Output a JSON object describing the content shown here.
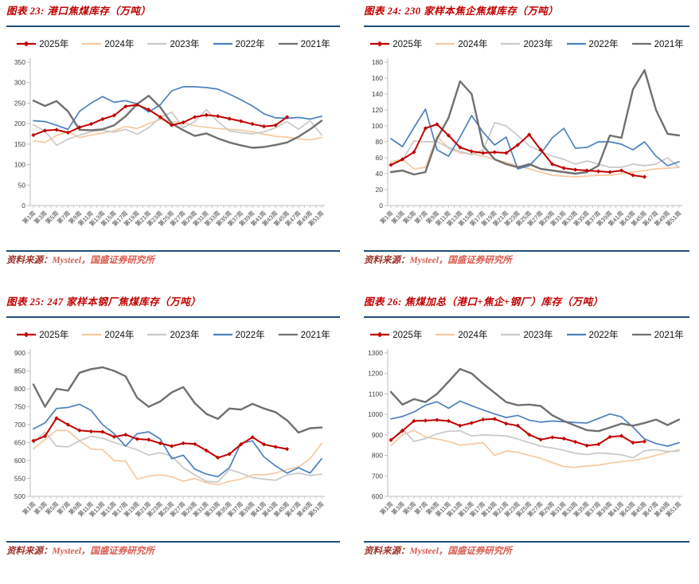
{
  "source": {
    "prefix": "资料来源：",
    "rest": "Mysteel，国盛证券研究所"
  },
  "separator_color": "#1f4e79",
  "title_color": "#c00000",
  "chart_data": [
    {
      "id": "chart-23",
      "type": "line",
      "title": "图表 23: 港口焦煤库存（万吨）",
      "source_prefix": "资料来源：",
      "source_rest": "Mysteel，国盛证券研究所",
      "y_axis": {
        "min": 0,
        "max": 350,
        "step": 50
      },
      "legend_position": "top",
      "grid": false,
      "categories": [
        "第1周",
        "第3周",
        "第5周",
        "第7周",
        "第9周",
        "第11周",
        "第13周",
        "第15周",
        "第17周",
        "第19周",
        "第21周",
        "第23周",
        "第25周",
        "第27周",
        "第29周",
        "第31周",
        "第33周",
        "第35周",
        "第37周",
        "第39周",
        "第41周",
        "第43周",
        "第45周",
        "第47周",
        "第49周",
        "第51周"
      ],
      "series": [
        {
          "name": "2025年",
          "color": "#c00000",
          "marker": "diamond",
          "values": [
            172,
            183,
            185,
            178,
            191,
            199,
            211,
            220,
            242,
            246,
            234,
            216,
            196,
            203,
            216,
            221,
            218,
            212,
            206,
            199,
            193,
            196,
            216,
            null,
            null,
            null
          ]
        },
        {
          "name": "2024年",
          "color": "#f6c9a0",
          "values": [
            158,
            154,
            171,
            181,
            166,
            172,
            177,
            183,
            193,
            188,
            200,
            210,
            205,
            202,
            195,
            191,
            188,
            186,
            184,
            180,
            174,
            169,
            167,
            163,
            160,
            166
          ]
        },
        {
          "name": "2023年",
          "color": "#c9c9c9",
          "values": [
            197,
            182,
            147,
            162,
            172,
            180,
            184,
            179,
            186,
            174,
            190,
            215,
            228,
            190,
            205,
            234,
            205,
            182,
            178,
            175,
            180,
            190,
            205,
            186,
            207,
            172
          ]
        },
        {
          "name": "2022年",
          "color": "#4e81bd",
          "values": [
            207,
            205,
            196,
            186,
            230,
            250,
            266,
            252,
            256,
            248,
            228,
            246,
            280,
            290,
            290,
            288,
            284,
            272,
            258,
            243,
            224,
            214,
            213,
            215,
            211,
            218
          ]
        },
        {
          "name": "2021年",
          "color": "#707070",
          "values": [
            256,
            243,
            255,
            230,
            185,
            184,
            186,
            196,
            218,
            248,
            268,
            240,
            200,
            184,
            170,
            176,
            164,
            154,
            147,
            141,
            143,
            148,
            154,
            168,
            186,
            207
          ]
        }
      ]
    },
    {
      "id": "chart-24",
      "type": "line",
      "title": "图表 24: 230 家样本焦企焦煤库存（万吨）",
      "source_prefix": "资料来源：",
      "source_rest": "Mysteel，国盛证券研究所",
      "y_axis": {
        "min": 0,
        "max": 180,
        "step": 20
      },
      "legend_position": "top",
      "grid": false,
      "categories": [
        "第1周",
        "第3周",
        "第5周",
        "第7周",
        "第9周",
        "第11周",
        "第13周",
        "第15周",
        "第17周",
        "第19周",
        "第21周",
        "第23周",
        "第25周",
        "第27周",
        "第29周",
        "第31周",
        "第33周",
        "第35周",
        "第37周",
        "第39周",
        "第41周",
        "第43周",
        "第45周",
        "第47周",
        "第49周",
        "第51周"
      ],
      "series": [
        {
          "name": "2025年",
          "color": "#c00000",
          "marker": "diamond",
          "values": [
            51,
            58,
            67,
            97,
            102,
            88,
            73,
            68,
            66,
            67,
            66,
            76,
            89,
            70,
            52,
            47,
            45,
            44,
            43,
            42,
            44,
            38,
            36,
            null,
            null,
            null
          ]
        },
        {
          "name": "2024年",
          "color": "#f6c9a0",
          "values": [
            55,
            58,
            46,
            48,
            87,
            72,
            66,
            65,
            62,
            58,
            54,
            50,
            46,
            42,
            38,
            37,
            36,
            37,
            38,
            38,
            40,
            42,
            44,
            46,
            47,
            48
          ]
        },
        {
          "name": "2023年",
          "color": "#c9c9c9",
          "values": [
            50,
            57,
            81,
            80,
            80,
            73,
            68,
            64,
            70,
            104,
            100,
            88,
            75,
            68,
            62,
            58,
            52,
            56,
            52,
            48,
            48,
            52,
            50,
            52,
            60,
            48
          ]
        },
        {
          "name": "2022年",
          "color": "#4e81bd",
          "values": [
            84,
            74,
            98,
            121,
            70,
            62,
            86,
            113,
            92,
            76,
            86,
            46,
            50,
            65,
            85,
            97,
            72,
            73,
            80,
            80,
            77,
            70,
            80,
            62,
            50,
            55
          ]
        },
        {
          "name": "2021年",
          "color": "#707070",
          "values": [
            42,
            44,
            39,
            42,
            84,
            110,
            156,
            140,
            75,
            58,
            52,
            48,
            52,
            46,
            44,
            42,
            40,
            42,
            50,
            88,
            85,
            146,
            170,
            120,
            90,
            88
          ]
        }
      ]
    },
    {
      "id": "chart-25",
      "type": "line",
      "title": "图表 25: 247 家样本钢厂焦煤库存（万吨）",
      "source_prefix": "资料来源：",
      "source_rest": "Mysteel，国盛证券研究所",
      "y_axis": {
        "min": 500,
        "max": 900,
        "step": 50
      },
      "legend_position": "top",
      "grid": false,
      "categories": [
        "第1周",
        "第3周",
        "第5周",
        "第7周",
        "第9周",
        "第11周",
        "第13周",
        "第15周",
        "第17周",
        "第19周",
        "第21周",
        "第23周",
        "第25周",
        "第27周",
        "第29周",
        "第31周",
        "第33周",
        "第35周",
        "第37周",
        "第39周",
        "第41周",
        "第43周",
        "第45周",
        "第47周",
        "第49周",
        "第51周"
      ],
      "series": [
        {
          "name": "2025年",
          "color": "#c00000",
          "marker": "diamond",
          "values": [
            655,
            668,
            718,
            700,
            684,
            681,
            680,
            666,
            672,
            660,
            658,
            648,
            640,
            648,
            646,
            628,
            608,
            618,
            645,
            665,
            645,
            638,
            632,
            null,
            null,
            null
          ]
        },
        {
          "name": "2024年",
          "color": "#f6c9a0",
          "values": [
            633,
            658,
            685,
            683,
            655,
            632,
            630,
            600,
            598,
            548,
            557,
            560,
            555,
            542,
            550,
            538,
            533,
            542,
            548,
            560,
            560,
            565,
            575,
            582,
            605,
            648
          ]
        },
        {
          "name": "2023年",
          "color": "#c9c9c9",
          "values": [
            648,
            680,
            640,
            638,
            655,
            668,
            662,
            650,
            640,
            630,
            615,
            622,
            612,
            580,
            560,
            542,
            540,
            575,
            565,
            552,
            548,
            545,
            560,
            565,
            558,
            562
          ]
        },
        {
          "name": "2022年",
          "color": "#4e81bd",
          "values": [
            688,
            705,
            745,
            748,
            757,
            740,
            700,
            675,
            640,
            675,
            680,
            660,
            605,
            615,
            576,
            562,
            555,
            580,
            648,
            655,
            610,
            585,
            565,
            580,
            565,
            605
          ]
        },
        {
          "name": "2021年",
          "color": "#707070",
          "values": [
            812,
            750,
            800,
            795,
            845,
            855,
            860,
            850,
            835,
            775,
            750,
            765,
            790,
            805,
            760,
            730,
            716,
            745,
            742,
            758,
            745,
            735,
            712,
            678,
            690,
            692
          ]
        }
      ]
    },
    {
      "id": "chart-26",
      "type": "line",
      "title": "图表 26: 焦煤加总（港口+焦企+钢厂）库存（万吨）",
      "source_prefix": "资料来源：",
      "source_rest": "Mysteel，国盛证券研究所",
      "y_axis": {
        "min": 600,
        "max": 1300,
        "step": 100
      },
      "legend_position": "top",
      "grid": false,
      "categories": [
        "第1周",
        "第3周",
        "第5周",
        "第7周",
        "第9周",
        "第11周",
        "第13周",
        "第15周",
        "第17周",
        "第19周",
        "第21周",
        "第23周",
        "第25周",
        "第27周",
        "第29周",
        "第31周",
        "第33周",
        "第35周",
        "第37周",
        "第39周",
        "第41周",
        "第43周",
        "第45周",
        "第47周",
        "第49周",
        "第51周"
      ],
      "series": [
        {
          "name": "2025年",
          "color": "#c00000",
          "marker": "diamond",
          "values": [
            875,
            920,
            968,
            970,
            973,
            968,
            945,
            958,
            975,
            978,
            955,
            945,
            901,
            877,
            888,
            882,
            866,
            848,
            854,
            890,
            895,
            862,
            868,
            null,
            null,
            null
          ]
        },
        {
          "name": "2024年",
          "color": "#f6c9a0",
          "values": [
            848,
            900,
            922,
            890,
            880,
            868,
            850,
            855,
            862,
            800,
            822,
            815,
            800,
            786,
            765,
            745,
            742,
            748,
            752,
            762,
            770,
            775,
            786,
            800,
            815,
            828
          ]
        },
        {
          "name": "2023年",
          "color": "#c9c9c9",
          "values": [
            870,
            930,
            868,
            882,
            905,
            918,
            920,
            895,
            900,
            898,
            895,
            880,
            862,
            845,
            836,
            825,
            810,
            804,
            812,
            808,
            803,
            788,
            822,
            828,
            818,
            822
          ]
        },
        {
          "name": "2022年",
          "color": "#4e81bd",
          "values": [
            978,
            990,
            1012,
            1045,
            1062,
            1030,
            1065,
            1042,
            1022,
            1002,
            985,
            995,
            972,
            962,
            968,
            964,
            960,
            958,
            980,
            1002,
            988,
            938,
            880,
            858,
            845,
            862
          ]
        },
        {
          "name": "2021年",
          "color": "#707070",
          "values": [
            1110,
            1048,
            1075,
            1060,
            1100,
            1160,
            1222,
            1200,
            1150,
            1105,
            1060,
            1045,
            1048,
            1041,
            996,
            968,
            945,
            923,
            918,
            936,
            955,
            945,
            958,
            975,
            948,
            975
          ]
        }
      ]
    }
  ]
}
